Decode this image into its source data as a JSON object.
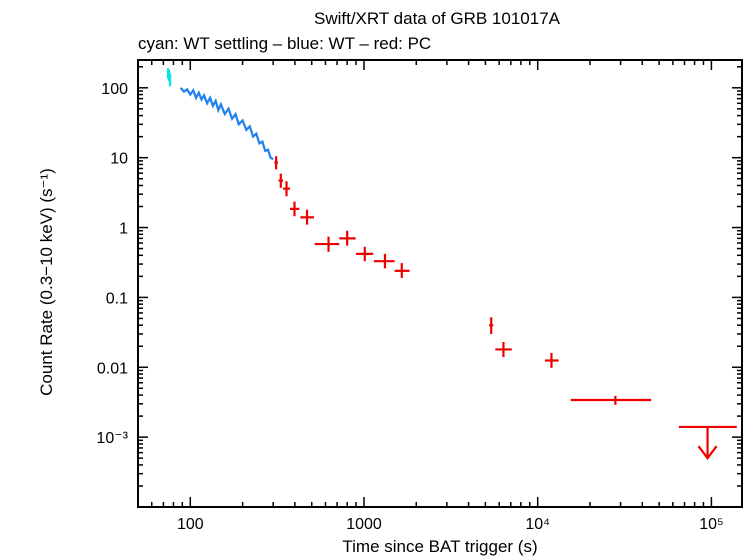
{
  "chart_data": {
    "type": "scatter",
    "title": "Swift/XRT data of GRB 101017A",
    "subtitle": "cyan: WT settling – blue: WT – red: PC",
    "xlabel": "Time since BAT trigger (s)",
    "ylabel": "Count Rate (0.3−10 keV) (s⁻¹)",
    "xscale": "log",
    "yscale": "log",
    "xlim": [
      50,
      150000
    ],
    "ylim": [
      0.0001,
      250
    ],
    "x_ticks": [
      {
        "value": 100,
        "label": "100"
      },
      {
        "value": 1000,
        "label": "1000"
      },
      {
        "value": 10000,
        "label": "10⁴"
      },
      {
        "value": 100000,
        "label": "10⁵"
      }
    ],
    "y_ticks": [
      {
        "value": 100,
        "label": "100"
      },
      {
        "value": 10,
        "label": "10"
      },
      {
        "value": 1,
        "label": "1"
      },
      {
        "value": 0.1,
        "label": "0.1"
      },
      {
        "value": 0.01,
        "label": "0.01"
      },
      {
        "value": 0.001,
        "label": "10⁻³"
      }
    ],
    "colors": {
      "wt_settling": "#00e5e5",
      "wt": "#1e82ee",
      "pc": "#ee0000",
      "frame": "#000000"
    },
    "series": [
      {
        "name": "WT settling",
        "color": "#00e5e5",
        "style": "errorbars",
        "points": [
          {
            "x": 74.5,
            "xerr": [
              74,
              75
            ],
            "y": 160,
            "yerr": [
              135,
              190
            ]
          },
          {
            "x": 75.5,
            "xerr": [
              75,
              76
            ],
            "y": 150,
            "yerr": [
              125,
              180
            ]
          },
          {
            "x": 76.5,
            "xerr": [
              76,
              77
            ],
            "y": 130,
            "yerr": [
              105,
              160
            ]
          }
        ]
      },
      {
        "name": "WT",
        "color": "#1e82ee",
        "style": "line",
        "x": [
          88,
          92,
          96,
          100,
          104,
          108,
          112,
          116,
          120,
          125,
          130,
          135,
          140,
          145,
          150,
          158,
          166,
          174,
          182,
          190,
          200,
          210,
          220,
          230,
          240,
          250,
          260,
          270,
          280,
          290,
          300
        ],
        "y": [
          100,
          88,
          95,
          80,
          92,
          72,
          85,
          68,
          78,
          60,
          72,
          55,
          65,
          48,
          58,
          42,
          50,
          36,
          42,
          30,
          34,
          25,
          28,
          20,
          22,
          16,
          17,
          12.5,
          13,
          10,
          9.5
        ]
      },
      {
        "name": "PC",
        "color": "#ee0000",
        "style": "errorbars",
        "points": [
          {
            "x": 312,
            "xerr": [
              305,
              320
            ],
            "y": 8.5,
            "yerr": [
              6.8,
              10.5
            ]
          },
          {
            "x": 332,
            "xerr": [
              322,
              342
            ],
            "y": 4.7,
            "yerr": [
              3.7,
              5.9
            ]
          },
          {
            "x": 358,
            "xerr": [
              342,
              375
            ],
            "y": 3.6,
            "yerr": [
              2.8,
              4.6
            ]
          },
          {
            "x": 398,
            "xerr": [
              375,
              425
            ],
            "y": 1.85,
            "yerr": [
              1.45,
              2.35
            ]
          },
          {
            "x": 470,
            "xerr": [
              430,
              515
            ],
            "y": 1.4,
            "yerr": [
              1.1,
              1.8
            ]
          },
          {
            "x": 625,
            "xerr": [
              520,
              720
            ],
            "y": 0.58,
            "yerr": [
              0.45,
              0.74
            ]
          },
          {
            "x": 800,
            "xerr": [
              720,
              895
            ],
            "y": 0.7,
            "yerr": [
              0.55,
              0.9
            ]
          },
          {
            "x": 1010,
            "xerr": [
              900,
              1130
            ],
            "y": 0.42,
            "yerr": [
              0.33,
              0.53
            ]
          },
          {
            "x": 1320,
            "xerr": [
              1140,
              1500
            ],
            "y": 0.33,
            "yerr": [
              0.26,
              0.42
            ]
          },
          {
            "x": 1650,
            "xerr": [
              1500,
              1830
            ],
            "y": 0.24,
            "yerr": [
              0.19,
              0.31
            ]
          },
          {
            "x": 5400,
            "xerr": [
              5250,
              5550
            ],
            "y": 0.04,
            "yerr": [
              0.03,
              0.052
            ]
          },
          {
            "x": 6350,
            "xerr": [
              5700,
              7100
            ],
            "y": 0.018,
            "yerr": [
              0.014,
              0.023
            ]
          },
          {
            "x": 12000,
            "xerr": [
              11000,
              13200
            ],
            "y": 0.0125,
            "yerr": [
              0.0098,
              0.016
            ]
          },
          {
            "x": 28000,
            "xerr": [
              15500,
              45000
            ],
            "y": 0.0034,
            "yerr": [
              0.0029,
              0.0039
            ]
          }
        ],
        "upper_limits": [
          {
            "x": 95000,
            "xerr": [
              65000,
              140000
            ],
            "y": 0.0014,
            "arrow_to": 0.0005
          }
        ]
      }
    ]
  }
}
